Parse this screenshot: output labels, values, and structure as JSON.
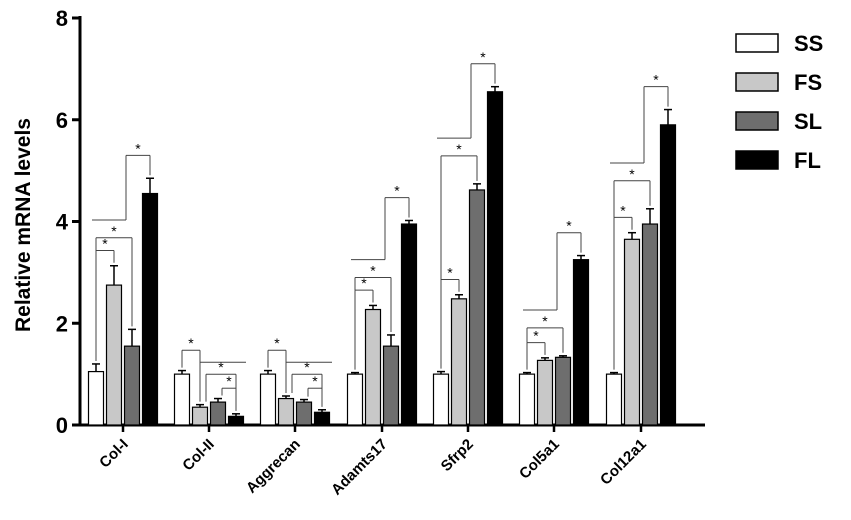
{
  "chart_data": {
    "type": "bar",
    "ylabel": "Relative mRNA levels",
    "ylim": [
      0,
      8
    ],
    "yticks": [
      "0",
      "2",
      "4",
      "6",
      "8"
    ],
    "grid": false,
    "legend_position": "top-right",
    "categories": [
      "Col-I",
      "Col-II",
      "Aggrecan",
      "Adamts17",
      "Sfrp2",
      "Col5a1",
      "Col12a1"
    ],
    "series": [
      {
        "name": "SS",
        "color": "#ffffff",
        "values": [
          1.05,
          1.0,
          1.0,
          1.0,
          1.0,
          1.0,
          1.0
        ],
        "errors": [
          0.15,
          0.07,
          0.07,
          0.03,
          0.05,
          0.03,
          0.03
        ]
      },
      {
        "name": "FS",
        "color": "#c8c8c8",
        "values": [
          2.75,
          0.35,
          0.52,
          2.27,
          2.48,
          1.27,
          3.65
        ],
        "errors": [
          0.38,
          0.05,
          0.05,
          0.08,
          0.08,
          0.05,
          0.13
        ]
      },
      {
        "name": "SL",
        "color": "#6e6e6e",
        "values": [
          1.55,
          0.45,
          0.45,
          1.55,
          4.62,
          1.33,
          3.95
        ],
        "errors": [
          0.33,
          0.07,
          0.05,
          0.22,
          0.12,
          0.03,
          0.3
        ]
      },
      {
        "name": "FL",
        "color": "#000000",
        "values": [
          4.55,
          0.17,
          0.25,
          3.95,
          6.55,
          3.25,
          5.9
        ],
        "errors": [
          0.3,
          0.05,
          0.05,
          0.07,
          0.1,
          0.08,
          0.3
        ]
      }
    ],
    "significance_marker": "*"
  }
}
